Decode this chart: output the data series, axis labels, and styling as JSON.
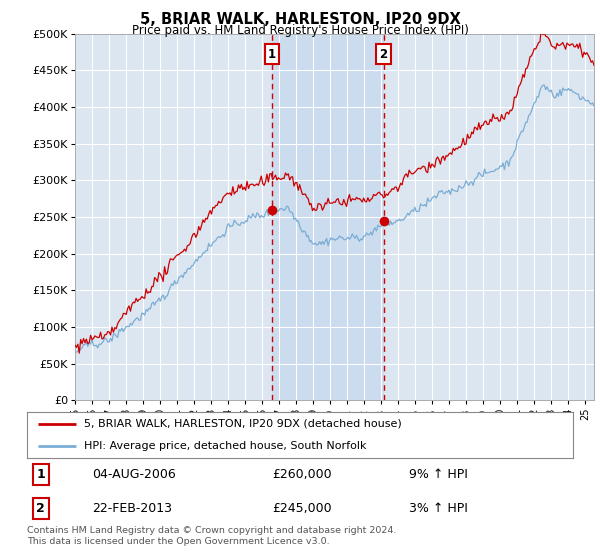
{
  "title": "5, BRIAR WALK, HARLESTON, IP20 9DX",
  "subtitle": "Price paid vs. HM Land Registry's House Price Index (HPI)",
  "ylim": [
    0,
    500000
  ],
  "yticks": [
    0,
    50000,
    100000,
    150000,
    200000,
    250000,
    300000,
    350000,
    400000,
    450000,
    500000
  ],
  "ytick_labels": [
    "£0",
    "£50K",
    "£100K",
    "£150K",
    "£200K",
    "£250K",
    "£300K",
    "£350K",
    "£400K",
    "£450K",
    "£500K"
  ],
  "background_color": "#ffffff",
  "plot_bg_color": "#dce6f1",
  "grid_color": "#ffffff",
  "shade_color": "#c5d9ef",
  "legend1_label": "5, BRIAR WALK, HARLESTON, IP20 9DX (detached house)",
  "legend2_label": "HPI: Average price, detached house, South Norfolk",
  "line1_color": "#cc0000",
  "line2_color": "#7aadd4",
  "annotation1_date": "04-AUG-2006",
  "annotation1_price": "£260,000",
  "annotation1_hpi": "9% ↑ HPI",
  "annotation2_date": "22-FEB-2013",
  "annotation2_price": "£245,000",
  "annotation2_hpi": "3% ↑ HPI",
  "footer": "Contains HM Land Registry data © Crown copyright and database right 2024.\nThis data is licensed under the Open Government Licence v3.0.",
  "sale1_x": 2006.58,
  "sale1_y": 260000,
  "sale2_x": 2013.13,
  "sale2_y": 245000,
  "xmin": 1995.0,
  "xmax": 2025.5
}
